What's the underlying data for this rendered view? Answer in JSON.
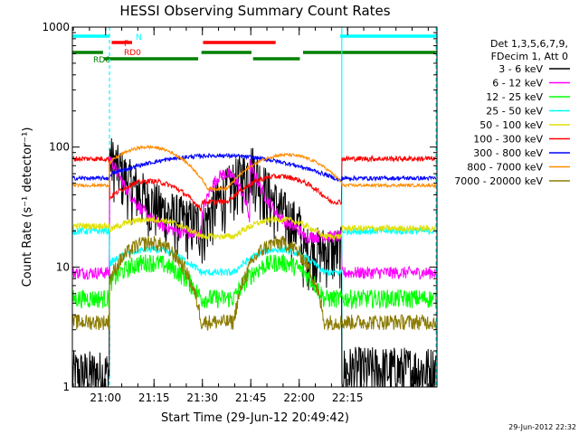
{
  "chart_data": {
    "type": "line",
    "title": "HESSI Observing Summary Count Rates",
    "xlabel": "Start Time (29-Jun-12 20:49:42)",
    "ylabel": "Count Rate (s⁻¹ detector⁻¹)",
    "footer_date": "29-Jun-2012 22:32",
    "y_scale": "log",
    "ylim": [
      1,
      1000
    ],
    "xlim_min": [
      0,
      113
    ],
    "y_ticks": [
      "1",
      "10",
      "100",
      "1000"
    ],
    "x_ticks": [
      {
        "label": "21:00",
        "min": 10.3
      },
      {
        "label": "21:15",
        "min": 25.3
      },
      {
        "label": "21:30",
        "min": 40.3
      },
      {
        "label": "21:45",
        "min": 55.3
      },
      {
        "label": "22:00",
        "min": 70.3
      },
      {
        "label": "22:15",
        "min": 85.3
      }
    ],
    "legend_header": [
      "Det 1,3,5,6,7,9,",
      "FDecim 1, Att 0"
    ],
    "legend_position": "right",
    "series": [
      {
        "name": "3 - 6 keV",
        "color": "#000000"
      },
      {
        "name": "6 - 12 keV",
        "color": "#ff00ff"
      },
      {
        "name": "12 - 25 keV",
        "color": "#00ff00"
      },
      {
        "name": "25 - 50 keV",
        "color": "#00ffff"
      },
      {
        "name": "50 - 100 keV",
        "color": "#e0e000"
      },
      {
        "name": "100 - 300 keV",
        "color": "#ff0000"
      },
      {
        "name": "300 - 800 keV",
        "color": "#0000ff"
      },
      {
        "name": "800 - 7000 keV",
        "color": "#ff8c00"
      },
      {
        "name": "7000 - 20000 keV",
        "color": "#8b7b00"
      }
    ],
    "flags": [
      {
        "label": "N",
        "color": "#00ffff",
        "segments": [
          [
            0,
            11.5
          ],
          [
            83,
            113
          ]
        ]
      },
      {
        "label": "F",
        "color": "#ff0000",
        "segments": [
          [
            12.2,
            18.5
          ],
          [
            40.5,
            63
          ]
        ]
      },
      {
        "label": "RD0",
        "color": "#ff0000",
        "segments": []
      },
      {
        "label": "",
        "color": "#008000",
        "segments": [
          [
            0,
            9.5
          ],
          [
            40,
            55.5
          ],
          [
            71.5,
            113
          ]
        ]
      },
      {
        "label": "RD6",
        "color": "#008000",
        "segments": [
          [
            9.8,
            39
          ],
          [
            56,
            70.5
          ]
        ]
      }
    ],
    "vlines": [
      {
        "min": 11.5,
        "style": "dashed",
        "color": "#00ffff"
      },
      {
        "min": 83.5,
        "style": "solid",
        "color": "#00ffff"
      },
      {
        "min": 112.7,
        "style": "dashed",
        "color": "#00ffff"
      }
    ]
  }
}
